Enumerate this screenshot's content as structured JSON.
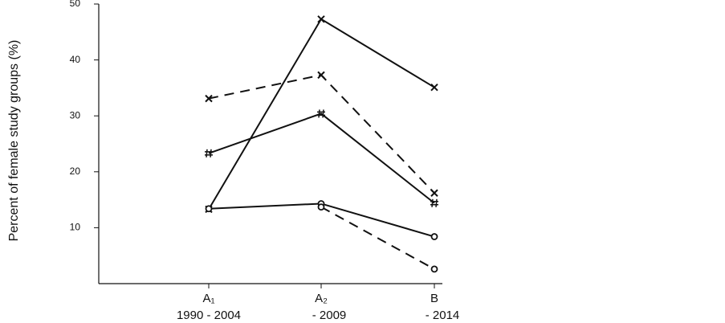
{
  "chart_data": {
    "type": "line",
    "y_label": "Percent of female study groups (%)",
    "categories": [
      "A₁",
      "A₂",
      "B"
    ],
    "category_sublabels": [
      "1990 - 2004",
      "- 2009",
      "- 2014"
    ],
    "ylim": [
      0,
      50
    ],
    "yticks": [
      10,
      20,
      30,
      40,
      50
    ],
    "series": [
      {
        "color": "#111111",
        "marker": "x",
        "dashed": false,
        "values": [
          13.3,
          47.3,
          35.1
        ]
      },
      {
        "color": "#111111",
        "marker": "x",
        "dashed": true,
        "values": [
          33.1,
          37.3,
          16.2
        ]
      },
      {
        "color": "#111111",
        "marker": "#",
        "dashed": false,
        "values": [
          23.3,
          30.4,
          14.4
        ]
      },
      {
        "color": "#111111",
        "marker": "o",
        "dashed": false,
        "values": [
          13.4,
          14.3,
          8.4
        ]
      },
      {
        "color": "#111111",
        "marker": "o",
        "dashed": true,
        "values": [
          null,
          13.7,
          2.6
        ]
      }
    ]
  }
}
